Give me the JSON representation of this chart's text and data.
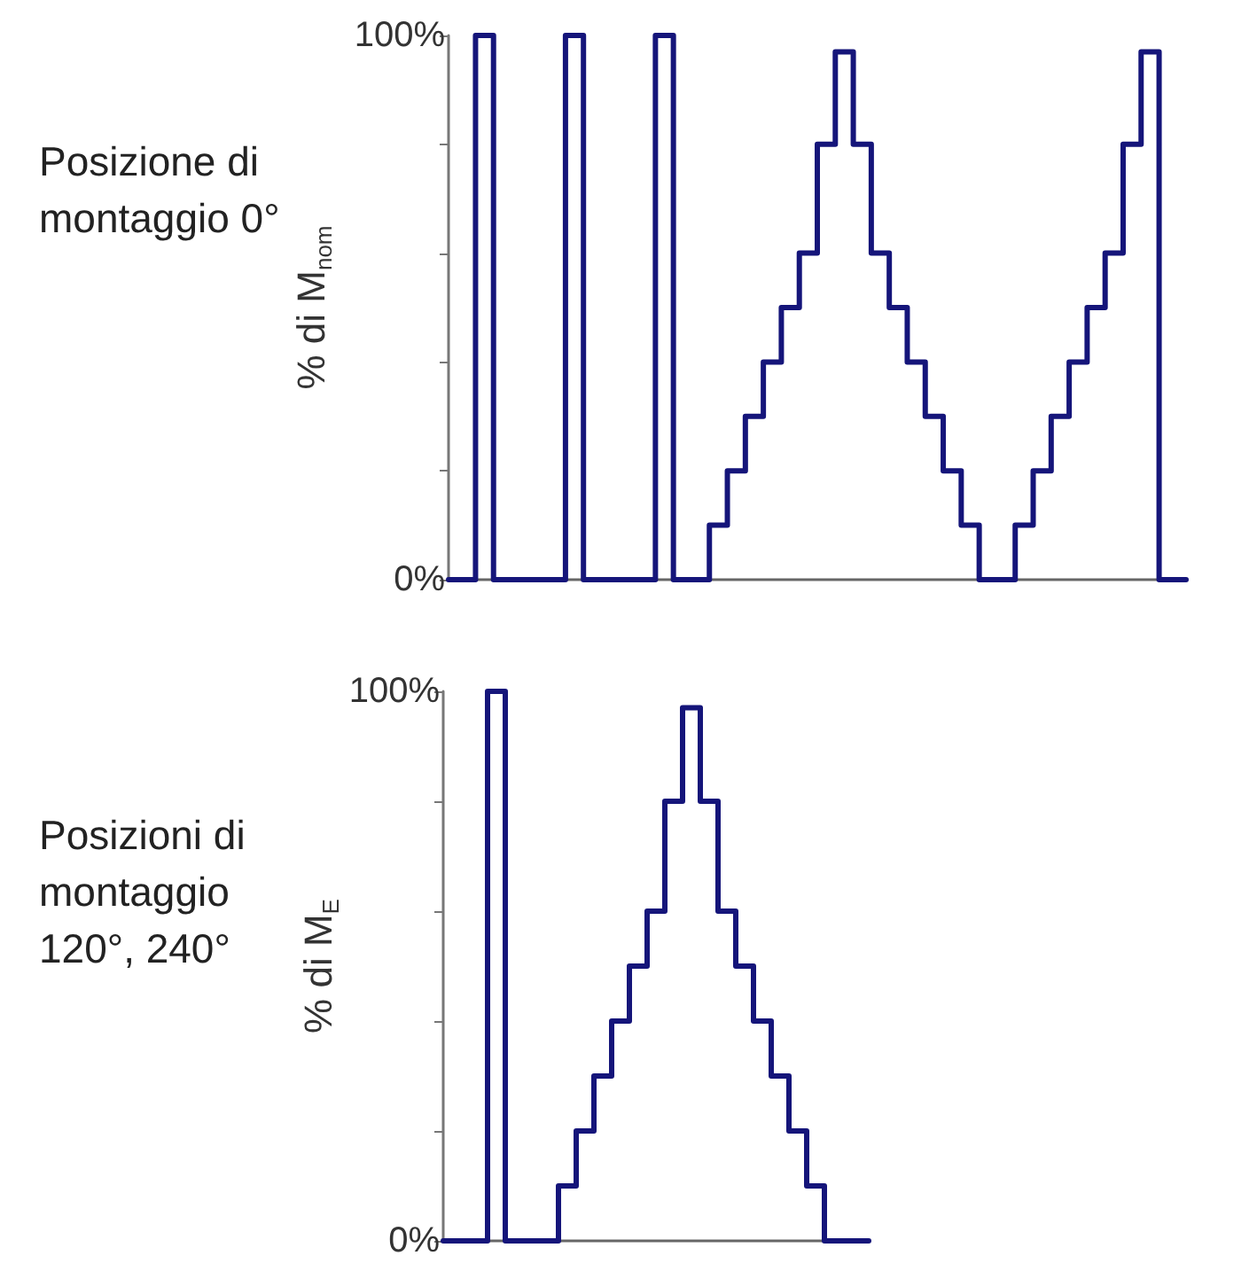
{
  "chart_data": [
    {
      "type": "step",
      "ylabel": "% di M$_{nom}$",
      "annotations": [
        "Posizione di montaggio 0°"
      ],
      "categories": [
        null,
        null,
        null,
        null,
        null,
        null,
        null,
        null,
        null,
        null,
        null,
        null,
        null,
        null,
        null,
        null,
        null,
        null,
        null,
        null,
        null,
        null,
        null,
        null,
        null,
        null,
        null,
        null,
        null,
        null,
        null,
        null,
        null,
        null,
        null,
        null,
        null,
        null,
        null,
        null,
        null,
        null
      ],
      "series": [
        {
          "color": "#15157a",
          "values": [
            0,
            0,
            100,
            0,
            0,
            0,
            0,
            100,
            0,
            0,
            0,
            0,
            100,
            0,
            0,
            10,
            20,
            30,
            40,
            50,
            60,
            80,
            97,
            80,
            60,
            50,
            40,
            30,
            20,
            10,
            0,
            0,
            10,
            20,
            30,
            40,
            50,
            60,
            80,
            97,
            0,
            0
          ]
        }
      ],
      "ylim": [
        0,
        100
      ],
      "yticks": [
        {
          "value": 0,
          "label": "0%"
        },
        {
          "value": 20,
          "label": null
        },
        {
          "value": 40,
          "label": null
        },
        {
          "value": 60,
          "label": null
        },
        {
          "value": 80,
          "label": null
        },
        {
          "value": 100,
          "label": "100%"
        }
      ],
      "tick_labels": "y",
      "grid": false,
      "marker": "none",
      "line_style": "solid"
    },
    {
      "type": "step",
      "ylabel": "% di M$_{E}$",
      "annotations": [
        "Posizioni di montaggio 120°, 240°"
      ],
      "categories": [
        null,
        null,
        null,
        null,
        null,
        null,
        null,
        null,
        null,
        null,
        null,
        null,
        null,
        null,
        null,
        null,
        null,
        null,
        null,
        null,
        null,
        null,
        null,
        null,
        null
      ],
      "series": [
        {
          "color": "#15157a",
          "values": [
            0,
            0,
            0,
            100,
            0,
            0,
            0,
            10,
            20,
            30,
            40,
            50,
            60,
            80,
            97,
            80,
            60,
            50,
            40,
            30,
            20,
            10,
            0,
            0,
            0
          ]
        }
      ],
      "ylim": [
        0,
        100
      ],
      "yticks": [
        {
          "value": 0,
          "label": "0%"
        },
        {
          "value": 20,
          "label": null
        },
        {
          "value": 40,
          "label": null
        },
        {
          "value": 60,
          "label": null
        },
        {
          "value": 80,
          "label": null
        },
        {
          "value": 100,
          "label": "100%"
        }
      ],
      "tick_labels": "y",
      "grid": false,
      "marker": "none",
      "line_style": "solid"
    }
  ]
}
